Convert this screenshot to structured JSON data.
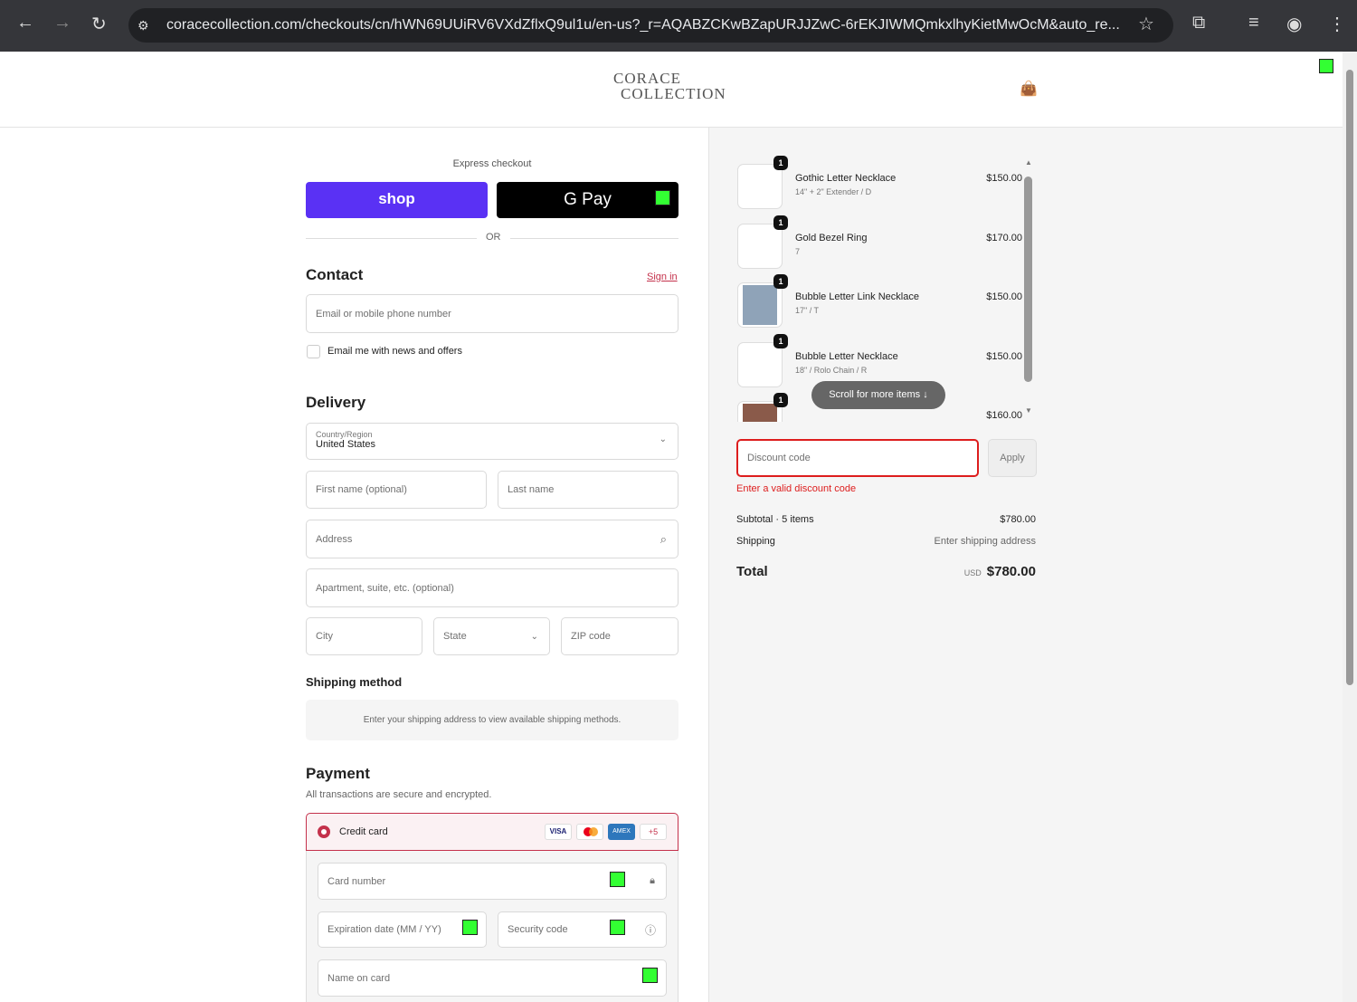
{
  "browser": {
    "url": "coracecollection.com/checkouts/cn/hWN69UUiRV6VXdZflxQ9ul1u/en-us?_r=AQABZCKwBZapURJJZwC-6rEKJIWMQmkxlhyKietMwOcM&auto_re..."
  },
  "header": {
    "logo_line1": "CORACE",
    "logo_line2": "COLLECTION"
  },
  "express": {
    "label": "Express checkout",
    "shop": "shop",
    "gpay": "G Pay",
    "or": "OR"
  },
  "contact": {
    "title": "Contact",
    "sign_in": "Sign in",
    "email_placeholder": "Email or mobile phone number",
    "news_label": "Email me with news and offers"
  },
  "delivery": {
    "title": "Delivery",
    "country_label": "Country/Region",
    "country": "United States",
    "first": "First name (optional)",
    "last": "Last name",
    "address": "Address",
    "apt": "Apartment, suite, etc. (optional)",
    "city": "City",
    "state": "State",
    "zip": "ZIP code"
  },
  "shipping": {
    "title": "Shipping method",
    "note": "Enter your shipping address to view available shipping methods."
  },
  "payment": {
    "title": "Payment",
    "subtitle": "All transactions are secure and encrypted.",
    "method": "Credit card",
    "more": "+5",
    "visa": "VISA",
    "amex": "AMEX",
    "card_number": "Card number",
    "expiry": "Expiration date (MM / YY)",
    "cvv": "Security code",
    "name": "Name on card"
  },
  "cart": {
    "items": [
      {
        "qty": "1",
        "name": "Gothic Letter Necklace",
        "variant": "14\" + 2\" Extender / D",
        "price": "$150.00"
      },
      {
        "qty": "1",
        "name": "Gold Bezel Ring",
        "variant": "7",
        "price": "$170.00"
      },
      {
        "qty": "1",
        "name": "Bubble Letter Link Necklace",
        "variant": "17\" / T",
        "price": "$150.00"
      },
      {
        "qty": "1",
        "name": "Bubble Letter Necklace",
        "variant": "18\" / Rolo Chain / R",
        "price": "$150.00"
      },
      {
        "qty": "1",
        "price": "$160.00"
      }
    ],
    "scroll_more": "Scroll for more items ↓"
  },
  "discount": {
    "placeholder": "Discount code",
    "apply": "Apply",
    "error": "Enter a valid discount code"
  },
  "summary": {
    "subtotal_label": "Subtotal · 5 items",
    "subtotal": "$780.00",
    "shipping_label": "Shipping",
    "shipping": "Enter shipping address",
    "total_label": "Total",
    "currency": "USD",
    "total": "$780.00"
  },
  "colors": {
    "shop": "#5a31f4",
    "error": "#dd1d1d",
    "accent": "#c4314b"
  }
}
